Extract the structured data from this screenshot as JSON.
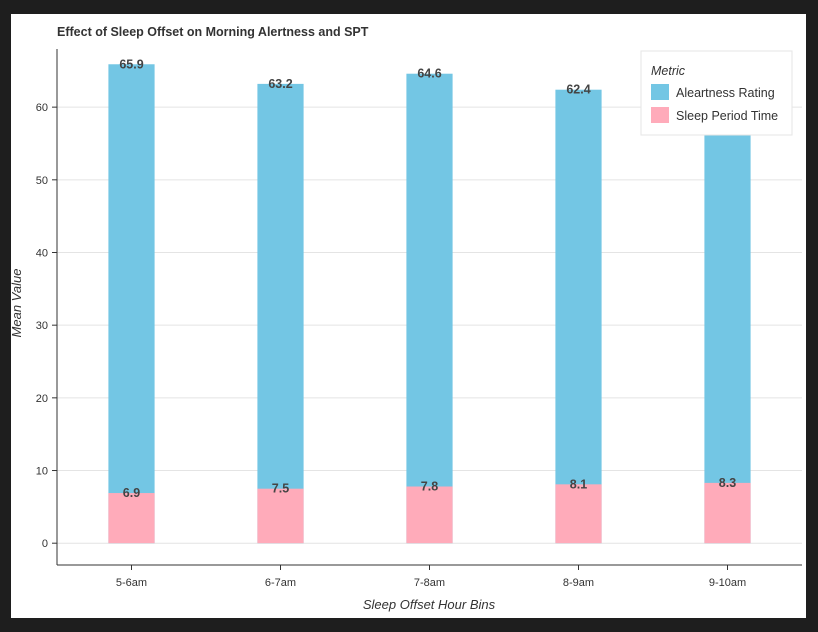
{
  "chart_data": {
    "type": "bar",
    "title": "Effect of Sleep Offset on Morning Alertness and SPT",
    "xlabel": "Sleep Offset Hour Bins",
    "ylabel": "Mean Value",
    "categories": [
      "5-6am",
      "6-7am",
      "7-8am",
      "8-9am",
      "9-10am"
    ],
    "ylim": [
      -3,
      68
    ],
    "yticks": [
      0,
      10,
      20,
      30,
      40,
      50,
      60
    ],
    "grid": true,
    "legend": {
      "title": "Metric",
      "placement": "top-right"
    },
    "series": [
      {
        "name": "Aleartness Rating",
        "color": "#73c6e4",
        "values": [
          65.9,
          63.2,
          64.6,
          62.4,
          61.5
        ],
        "labels": [
          "65.9",
          "63.2",
          "64.6",
          "62.4",
          ""
        ]
      },
      {
        "name": "Sleep Period Time",
        "color": "#ffabba",
        "values": [
          6.9,
          7.5,
          7.8,
          8.1,
          8.3
        ],
        "labels": [
          "6.9",
          "7.5",
          "7.8",
          "8.1",
          "8.3"
        ]
      }
    ]
  }
}
